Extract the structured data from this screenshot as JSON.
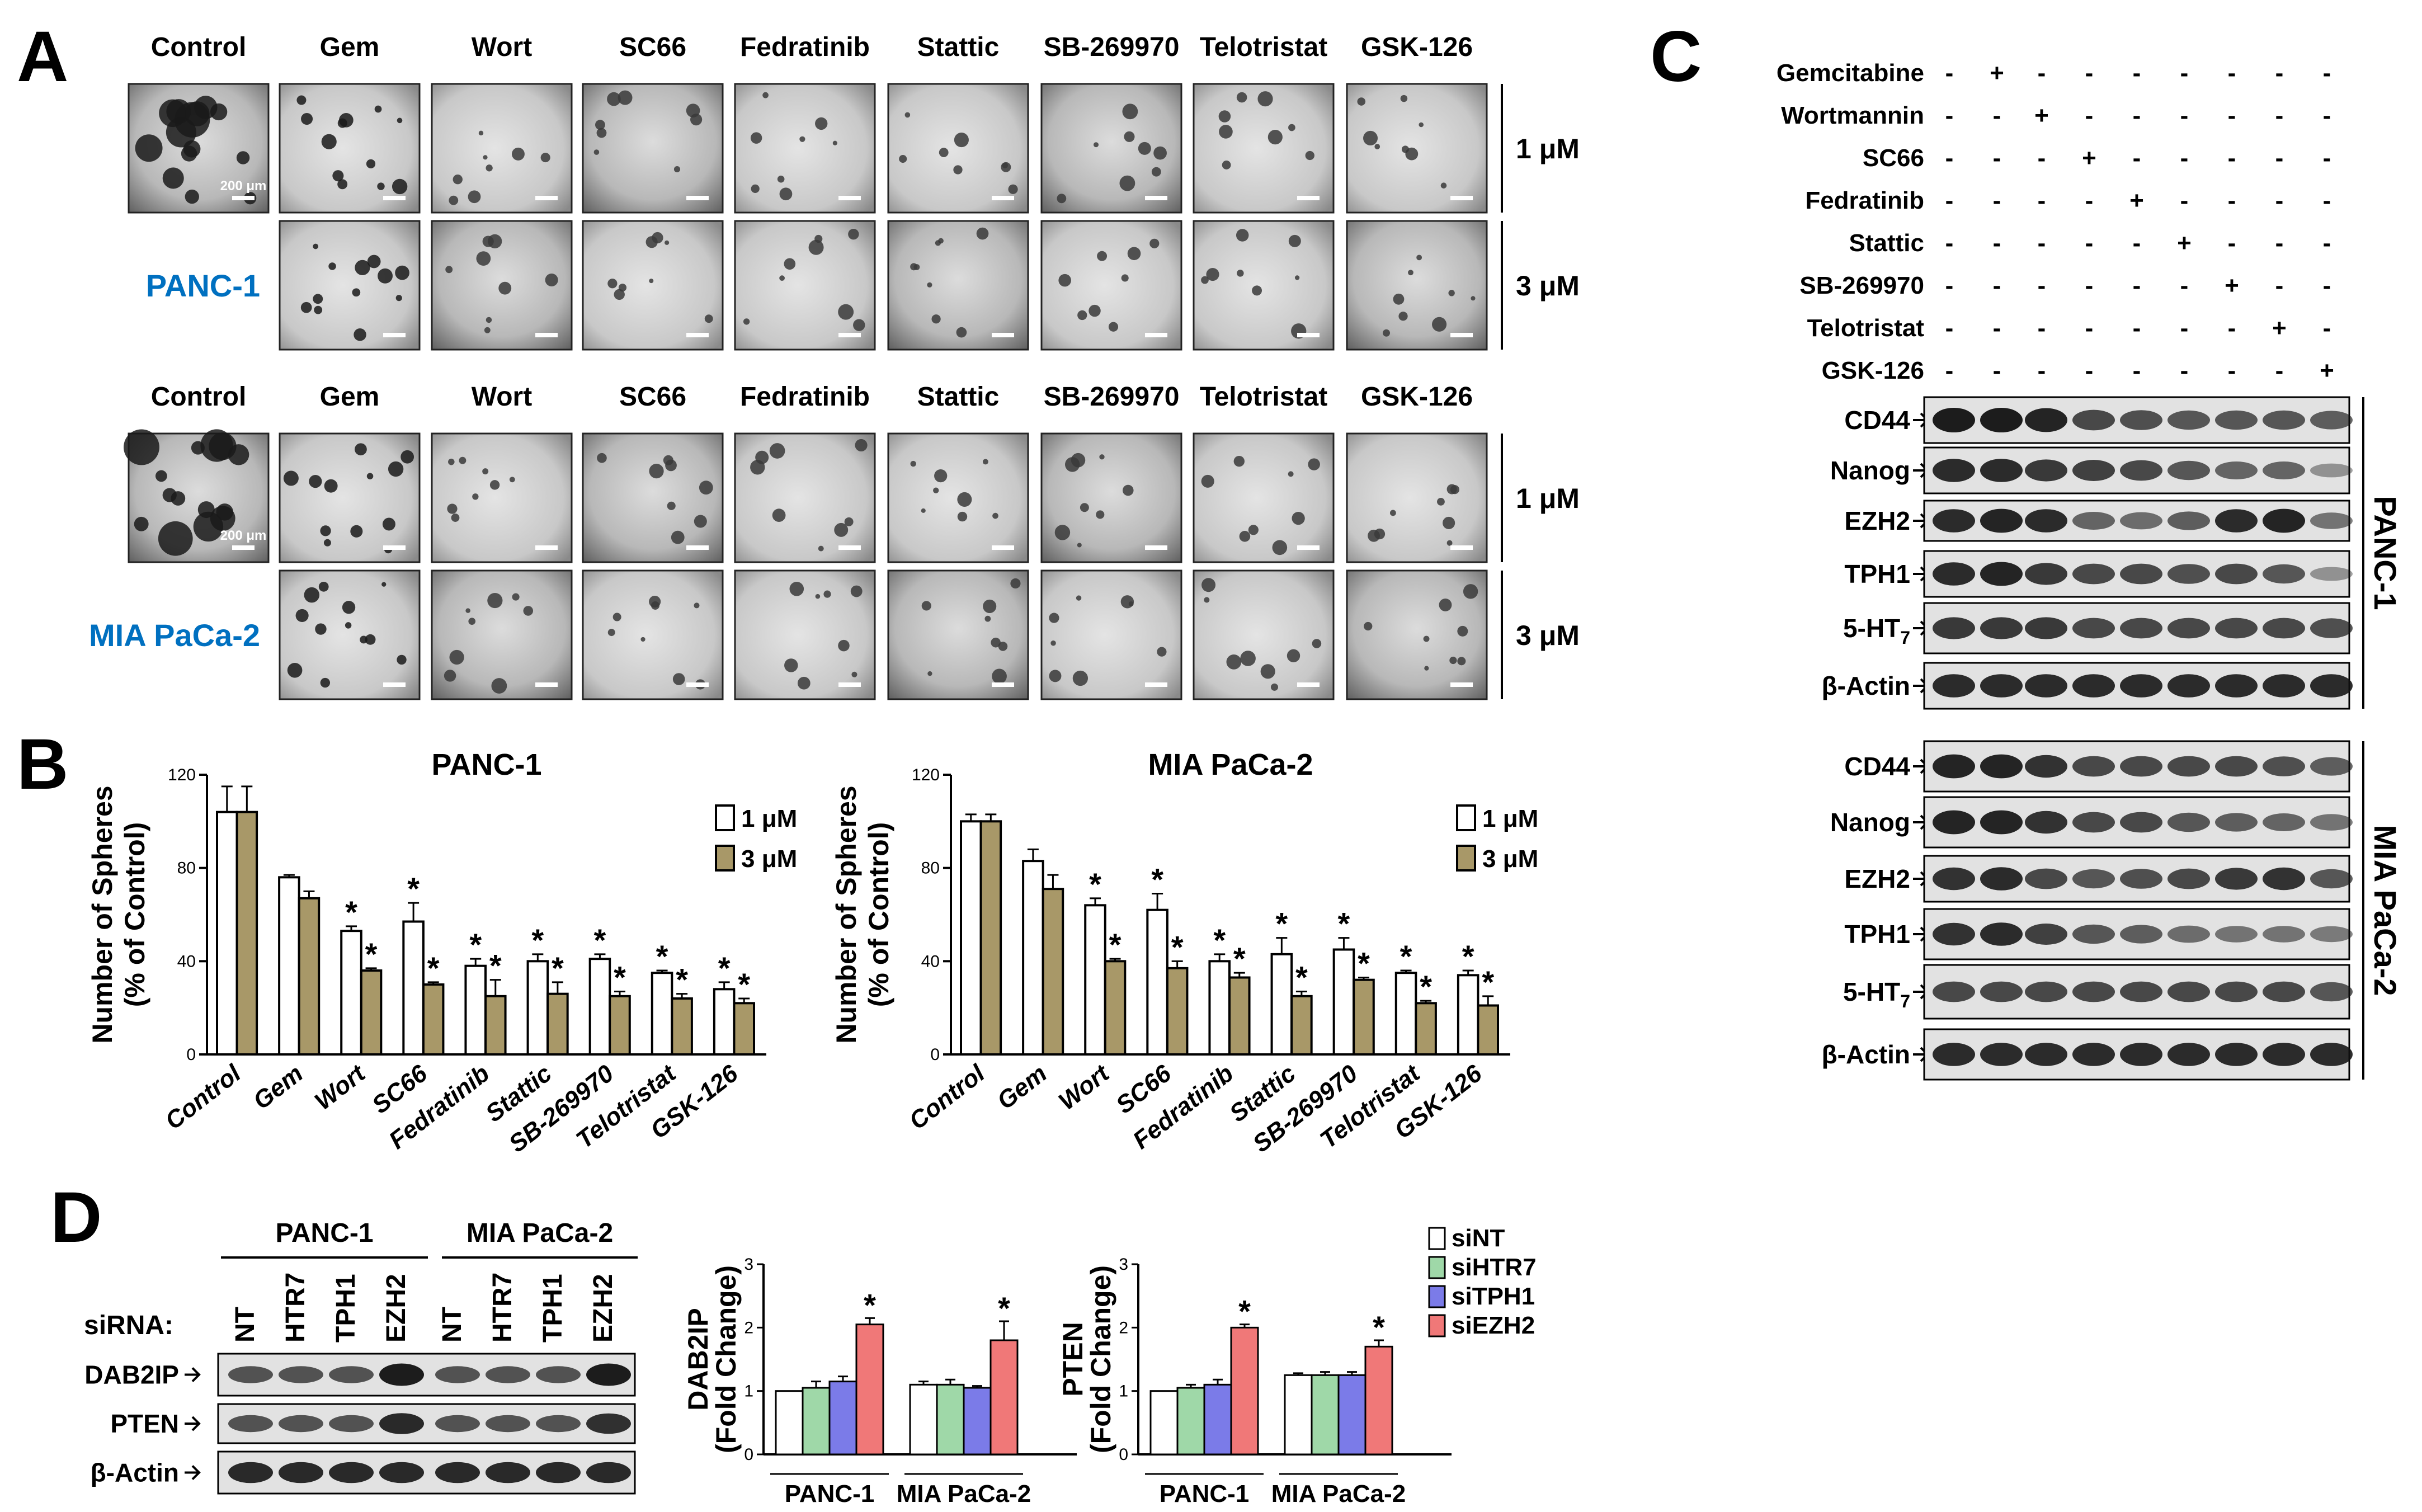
{
  "panels": {
    "A": "A",
    "B": "B",
    "C": "C",
    "D": "D"
  },
  "panel_a": {
    "row_groups": [
      {
        "cell_line": "PANC-1",
        "headers": [
          "Control",
          "Gem",
          "Wort",
          "SC66",
          "Fedratinib",
          "Stattic",
          "SB-269970",
          "Telotristat",
          "GSK-126"
        ],
        "scale_bar": "200 μm"
      },
      {
        "cell_line": "MIA PaCa-2",
        "headers": [
          "Control",
          "Gem",
          "Wort",
          "SC66",
          "Fedratinib",
          "Stattic",
          "SB-269970",
          "Telotristat",
          "GSK-126"
        ],
        "scale_bar": "200 μm"
      }
    ],
    "concentrations": [
      "1 μM",
      "3 μM"
    ]
  },
  "panel_b": {
    "ylabel_line1": "Number of Spheres",
    "ylabel_line2": "(% of Control)",
    "significance_marker": "*"
  },
  "panel_c": {
    "treatments": [
      "Gemcitabine",
      "Wortmannin",
      "SC66",
      "Fedratinib",
      "Stattic",
      "SB-269970",
      "Telotristat",
      "GSK-126"
    ],
    "markers": {
      "CD44": "CD44",
      "Nanog": "Nanog",
      "EZH2": "EZH2",
      "TPH1": "TPH1",
      "HT7_prefix": "5-HT",
      "HT7_sub": "7",
      "Actin": "β-Actin"
    },
    "groups": [
      "PANC-1",
      "MIA PaCa-2"
    ],
    "plus": "+",
    "minus": "-"
  },
  "panel_d": {
    "group_labels": [
      "PANC-1",
      "MIA PaCa-2"
    ],
    "sirna_label": "siRNA:",
    "lanes": [
      "NT",
      "HTR7",
      "TPH1",
      "EZH2",
      "NT",
      "HTR7",
      "TPH1",
      "EZH2"
    ],
    "blots": [
      "DAB2IP",
      "PTEN",
      "β-Actin"
    ],
    "legend": [
      "siNT",
      "siHTR7",
      "siTPH1",
      "siEZH2"
    ],
    "colors": {
      "siNT": "#ffffff",
      "siHTR7": "#9fd8a8",
      "siTPH1": "#7b7be8",
      "siEZH2": "#f07878"
    },
    "fold_change_label": "(Fold Change)"
  },
  "chart_data": [
    {
      "type": "bar",
      "title": "PANC-1",
      "ylabel": "Number of Spheres (% of Control)",
      "categories": [
        "Control",
        "Gem",
        "Wort",
        "SC66",
        "Fedratinib",
        "Stattic",
        "SB-269970",
        "Telotristat",
        "GSK-126"
      ],
      "series": [
        {
          "name": "1 μM",
          "color": "#ffffff",
          "values": [
            104,
            76,
            53,
            57,
            38,
            40,
            41,
            35,
            28
          ],
          "errors": [
            11,
            1,
            2,
            8,
            3,
            3,
            2,
            1,
            3
          ],
          "significant": [
            false,
            false,
            true,
            true,
            true,
            true,
            true,
            true,
            true
          ]
        },
        {
          "name": "3 μM",
          "color": "#a89868",
          "values": [
            104,
            67,
            36,
            30,
            25,
            26,
            25,
            24,
            22
          ],
          "errors": [
            11,
            3,
            1,
            1,
            7,
            5,
            2,
            2,
            2
          ],
          "significant": [
            false,
            false,
            true,
            true,
            true,
            true,
            true,
            true,
            true
          ]
        }
      ],
      "ylim": [
        0,
        120
      ],
      "yticks": [
        0,
        40,
        80,
        120
      ]
    },
    {
      "type": "bar",
      "title": "MIA PaCa-2",
      "ylabel": "Number of Spheres (% of Control)",
      "categories": [
        "Control",
        "Gem",
        "Wort",
        "SC66",
        "Fedratinib",
        "Stattic",
        "SB-269970",
        "Telotristat",
        "GSK-126"
      ],
      "series": [
        {
          "name": "1 μM",
          "color": "#ffffff",
          "values": [
            100,
            83,
            64,
            62,
            40,
            43,
            45,
            35,
            34
          ],
          "errors": [
            3,
            5,
            3,
            7,
            3,
            7,
            5,
            1,
            2
          ],
          "significant": [
            false,
            false,
            true,
            true,
            true,
            true,
            true,
            true,
            true
          ]
        },
        {
          "name": "3 μM",
          "color": "#a89868",
          "values": [
            100,
            71,
            40,
            37,
            33,
            25,
            32,
            22,
            21
          ],
          "errors": [
            3,
            6,
            1,
            3,
            2,
            2,
            1,
            1,
            4
          ],
          "significant": [
            false,
            false,
            true,
            true,
            true,
            true,
            true,
            true,
            true
          ]
        }
      ],
      "ylim": [
        0,
        120
      ],
      "yticks": [
        0,
        40,
        80,
        120
      ]
    },
    {
      "type": "bar",
      "title": "",
      "ylabel": "DAB2IP (Fold Change)",
      "categories": [
        "PANC-1",
        "MIA PaCa-2"
      ],
      "series": [
        {
          "name": "siNT",
          "values": [
            1.0,
            1.1
          ],
          "errors": [
            0,
            0.05
          ]
        },
        {
          "name": "siHTR7",
          "values": [
            1.05,
            1.1
          ],
          "errors": [
            0.1,
            0.08
          ]
        },
        {
          "name": "siTPH1",
          "values": [
            1.15,
            1.05
          ],
          "errors": [
            0.08,
            0.03
          ]
        },
        {
          "name": "siEZH2",
          "values": [
            2.05,
            1.8
          ],
          "errors": [
            0.1,
            0.3
          ]
        }
      ],
      "significant": [
        "siEZH2"
      ],
      "ylim": [
        0,
        3
      ],
      "yticks": [
        0,
        1,
        2,
        3
      ]
    },
    {
      "type": "bar",
      "title": "",
      "ylabel": "PTEN (Fold Change)",
      "categories": [
        "PANC-1",
        "MIA PaCa-2"
      ],
      "series": [
        {
          "name": "siNT",
          "values": [
            1.0,
            1.25
          ],
          "errors": [
            0,
            0.03
          ]
        },
        {
          "name": "siHTR7",
          "values": [
            1.05,
            1.25
          ],
          "errors": [
            0.05,
            0.05
          ]
        },
        {
          "name": "siTPH1",
          "values": [
            1.1,
            1.25
          ],
          "errors": [
            0.08,
            0.05
          ]
        },
        {
          "name": "siEZH2",
          "values": [
            2.0,
            1.7
          ],
          "errors": [
            0.05,
            0.1
          ]
        }
      ],
      "significant": [
        "siEZH2"
      ],
      "ylim": [
        0,
        3
      ],
      "yticks": [
        0,
        1,
        2,
        3
      ]
    }
  ]
}
